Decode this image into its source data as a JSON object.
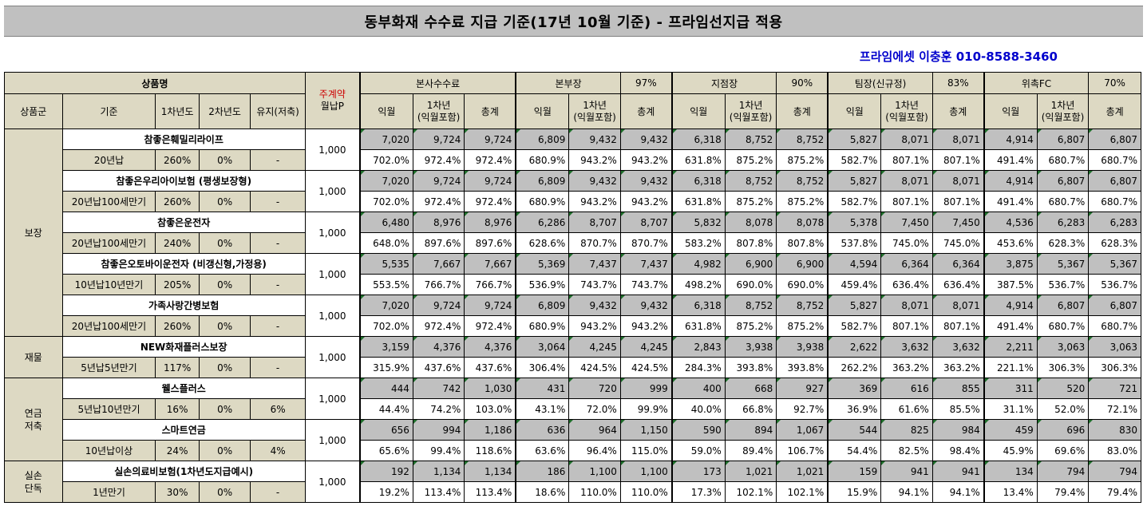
{
  "title": "동부화재 수수료 지급 기준(17년 10월 기준) - 프라임선지급 적용",
  "contact": "프라임에셋 이충훈 010-8588-3460",
  "header": {
    "product_name": "상품명",
    "product_group": "상품군",
    "basis": "기준",
    "year1": "1차년도",
    "year2": "2차년도",
    "maintain": "유지(저축)",
    "premium_line1": "주계약",
    "premium_line2": "월납P",
    "sub_monthly": "익월",
    "sub_year1_line1": "1차년",
    "sub_year1_line2": "(익월포함)",
    "sub_total": "총계",
    "groups": [
      {
        "name": "본사수수료",
        "rate": ""
      },
      {
        "name": "본부장",
        "rate": "97%"
      },
      {
        "name": "지점장",
        "rate": "90%"
      },
      {
        "name": "팀장(신규정)",
        "rate": "83%"
      },
      {
        "name": "위촉FC",
        "rate": "70%"
      }
    ]
  },
  "categories": [
    {
      "name": "보장",
      "rows": 5
    },
    {
      "name": "재물",
      "rows": 1
    },
    {
      "name": "연금\n저축",
      "rows": 2
    },
    {
      "name": "실손\n단독",
      "rows": 1
    }
  ],
  "products": [
    {
      "name": "참좋은훼밀리라이프",
      "basis": "20년납",
      "y1": "260%",
      "y2": "0%",
      "maint": "-",
      "premium": "1,000",
      "amounts": [
        "7,020",
        "9,724",
        "9,724",
        "6,809",
        "9,432",
        "9,432",
        "6,318",
        "8,752",
        "8,752",
        "5,827",
        "8,071",
        "8,071",
        "4,914",
        "6,807",
        "6,807"
      ],
      "rates": [
        "702.0%",
        "972.4%",
        "972.4%",
        "680.9%",
        "943.2%",
        "943.2%",
        "631.8%",
        "875.2%",
        "875.2%",
        "582.7%",
        "807.1%",
        "807.1%",
        "491.4%",
        "680.7%",
        "680.7%"
      ]
    },
    {
      "name": "참좋은우리아이보험 (평생보장형)",
      "basis": "20년납100세만기",
      "y1": "260%",
      "y2": "0%",
      "maint": "-",
      "premium": "1,000",
      "amounts": [
        "7,020",
        "9,724",
        "9,724",
        "6,809",
        "9,432",
        "9,432",
        "6,318",
        "8,752",
        "8,752",
        "5,827",
        "8,071",
        "8,071",
        "4,914",
        "6,807",
        "6,807"
      ],
      "rates": [
        "702.0%",
        "972.4%",
        "972.4%",
        "680.9%",
        "943.2%",
        "943.2%",
        "631.8%",
        "875.2%",
        "875.2%",
        "582.7%",
        "807.1%",
        "807.1%",
        "491.4%",
        "680.7%",
        "680.7%"
      ]
    },
    {
      "name": "참좋은운전자",
      "basis": "20년납100세만기",
      "y1": "240%",
      "y2": "0%",
      "maint": "-",
      "premium": "1,000",
      "amounts": [
        "6,480",
        "8,976",
        "8,976",
        "6,286",
        "8,707",
        "8,707",
        "5,832",
        "8,078",
        "8,078",
        "5,378",
        "7,450",
        "7,450",
        "4,536",
        "6,283",
        "6,283"
      ],
      "rates": [
        "648.0%",
        "897.6%",
        "897.6%",
        "628.6%",
        "870.7%",
        "870.7%",
        "583.2%",
        "807.8%",
        "807.8%",
        "537.8%",
        "745.0%",
        "745.0%",
        "453.6%",
        "628.3%",
        "628.3%"
      ]
    },
    {
      "name": "참좋은오토바이운전자 (비갱신형,가정용)",
      "basis": "10년납10년만기",
      "y1": "205%",
      "y2": "0%",
      "maint": "-",
      "premium": "1,000",
      "amounts": [
        "5,535",
        "7,667",
        "7,667",
        "5,369",
        "7,437",
        "7,437",
        "4,982",
        "6,900",
        "6,900",
        "4,594",
        "6,364",
        "6,364",
        "3,875",
        "5,367",
        "5,367"
      ],
      "rates": [
        "553.5%",
        "766.7%",
        "766.7%",
        "536.9%",
        "743.7%",
        "743.7%",
        "498.2%",
        "690.0%",
        "690.0%",
        "459.4%",
        "636.4%",
        "636.4%",
        "387.5%",
        "536.7%",
        "536.7%"
      ]
    },
    {
      "name": "가족사랑간병보험",
      "basis": "20년납100세만기",
      "y1": "260%",
      "y2": "0%",
      "maint": "-",
      "premium": "1,000",
      "amounts": [
        "7,020",
        "9,724",
        "9,724",
        "6,809",
        "9,432",
        "9,432",
        "6,318",
        "8,752",
        "8,752",
        "5,827",
        "8,071",
        "8,071",
        "4,914",
        "6,807",
        "6,807"
      ],
      "rates": [
        "702.0%",
        "972.4%",
        "972.4%",
        "680.9%",
        "943.2%",
        "943.2%",
        "631.8%",
        "875.2%",
        "875.2%",
        "582.7%",
        "807.1%",
        "807.1%",
        "491.4%",
        "680.7%",
        "680.7%"
      ]
    },
    {
      "name": "NEW화재플러스보장",
      "basis": "5년납5년만기",
      "y1": "117%",
      "y2": "0%",
      "maint": "-",
      "premium": "1,000",
      "amounts": [
        "3,159",
        "4,376",
        "4,376",
        "3,064",
        "4,245",
        "4,245",
        "2,843",
        "3,938",
        "3,938",
        "2,622",
        "3,632",
        "3,632",
        "2,211",
        "3,063",
        "3,063"
      ],
      "rates": [
        "315.9%",
        "437.6%",
        "437.6%",
        "306.4%",
        "424.5%",
        "424.5%",
        "284.3%",
        "393.8%",
        "393.8%",
        "262.2%",
        "363.2%",
        "363.2%",
        "221.1%",
        "306.3%",
        "306.3%"
      ]
    },
    {
      "name": "웰스플러스",
      "basis": "5년납10년만기",
      "y1": "16%",
      "y2": "0%",
      "maint": "6%",
      "premium": "1,000",
      "amounts": [
        "444",
        "742",
        "1,030",
        "431",
        "720",
        "999",
        "400",
        "668",
        "927",
        "369",
        "616",
        "855",
        "311",
        "520",
        "721"
      ],
      "rates": [
        "44.4%",
        "74.2%",
        "103.0%",
        "43.1%",
        "72.0%",
        "99.9%",
        "40.0%",
        "66.8%",
        "92.7%",
        "36.9%",
        "61.6%",
        "85.5%",
        "31.1%",
        "52.0%",
        "72.1%"
      ]
    },
    {
      "name": "스마트연금",
      "basis": "10년납이상",
      "y1": "24%",
      "y2": "0%",
      "maint": "4%",
      "premium": "1,000",
      "amounts": [
        "656",
        "994",
        "1,186",
        "636",
        "964",
        "1,150",
        "590",
        "894",
        "1,067",
        "544",
        "825",
        "984",
        "459",
        "696",
        "830"
      ],
      "rates": [
        "65.6%",
        "99.4%",
        "118.6%",
        "63.6%",
        "96.4%",
        "115.0%",
        "59.0%",
        "89.4%",
        "106.7%",
        "54.4%",
        "82.5%",
        "98.4%",
        "45.9%",
        "69.6%",
        "83.0%"
      ]
    },
    {
      "name": "실손의료비보험(1차년도지급예시)",
      "basis": "1년만기",
      "y1": "30%",
      "y2": "0%",
      "maint": "-",
      "premium": "1,000",
      "amounts": [
        "192",
        "1,134",
        "1,134",
        "186",
        "1,100",
        "1,100",
        "173",
        "1,021",
        "1,021",
        "159",
        "941",
        "941",
        "134",
        "794",
        "794"
      ],
      "rates": [
        "19.2%",
        "113.4%",
        "113.4%",
        "18.6%",
        "110.0%",
        "110.0%",
        "17.3%",
        "102.1%",
        "102.1%",
        "15.9%",
        "94.1%",
        "94.1%",
        "13.4%",
        "79.4%",
        "79.4%"
      ]
    }
  ]
}
